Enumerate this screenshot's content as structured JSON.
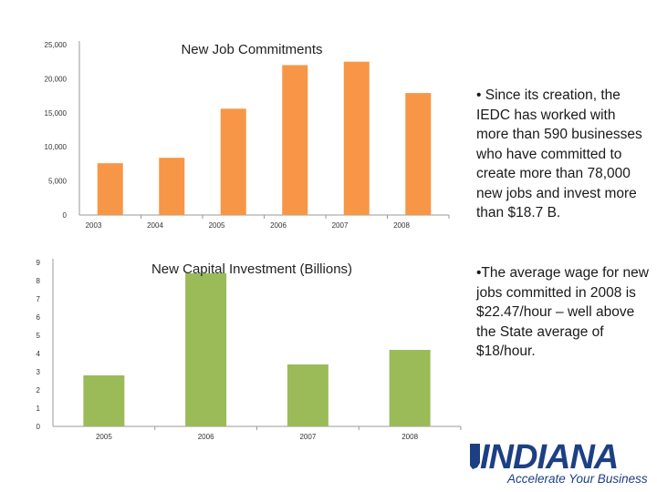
{
  "colors": {
    "jobs_bar": "#F79646",
    "capital_bar": "#9BBB59",
    "axis": "#999999",
    "logo": "#1D3F83"
  },
  "chart_data": [
    {
      "type": "bar",
      "title": "New Job Commitments",
      "categories": [
        "2003",
        "2004",
        "2005",
        "2006",
        "2007",
        "2008"
      ],
      "values": [
        7600,
        8400,
        15600,
        22000,
        22500,
        17900
      ],
      "ylim": [
        0,
        25000
      ],
      "yticks": [
        0,
        5000,
        10000,
        15000,
        20000,
        25000
      ],
      "ytick_labels": [
        "0",
        "5,000",
        "10,000",
        "15,000",
        "20,000",
        "25,000"
      ],
      "xlabel": "",
      "ylabel": ""
    },
    {
      "type": "bar",
      "title": "New Capital Investment (Billions)",
      "categories": [
        "2005",
        "2006",
        "2007",
        "2008"
      ],
      "values": [
        2.8,
        8.4,
        3.4,
        4.2
      ],
      "ylim": [
        0,
        9
      ],
      "yticks": [
        0,
        1,
        2,
        3,
        4,
        5,
        6,
        7,
        8,
        9
      ],
      "ytick_labels": [
        "0",
        "1",
        "2",
        "3",
        "4",
        "5",
        "6",
        "7",
        "8",
        "9"
      ],
      "xlabel": "",
      "ylabel": ""
    }
  ],
  "bullets": [
    "• Since its creation, the IEDC has worked with more than 590 businesses who have committed to create more than  78,000 new jobs and invest more than $18.7 B.",
    "•The average wage for new jobs committed in 2008 is $22.47/hour – well above the State average of $18/hour."
  ],
  "logo": {
    "name": "INDIANA",
    "tagline": "Accelerate Your Business",
    "icon": "indiana-state-icon"
  }
}
